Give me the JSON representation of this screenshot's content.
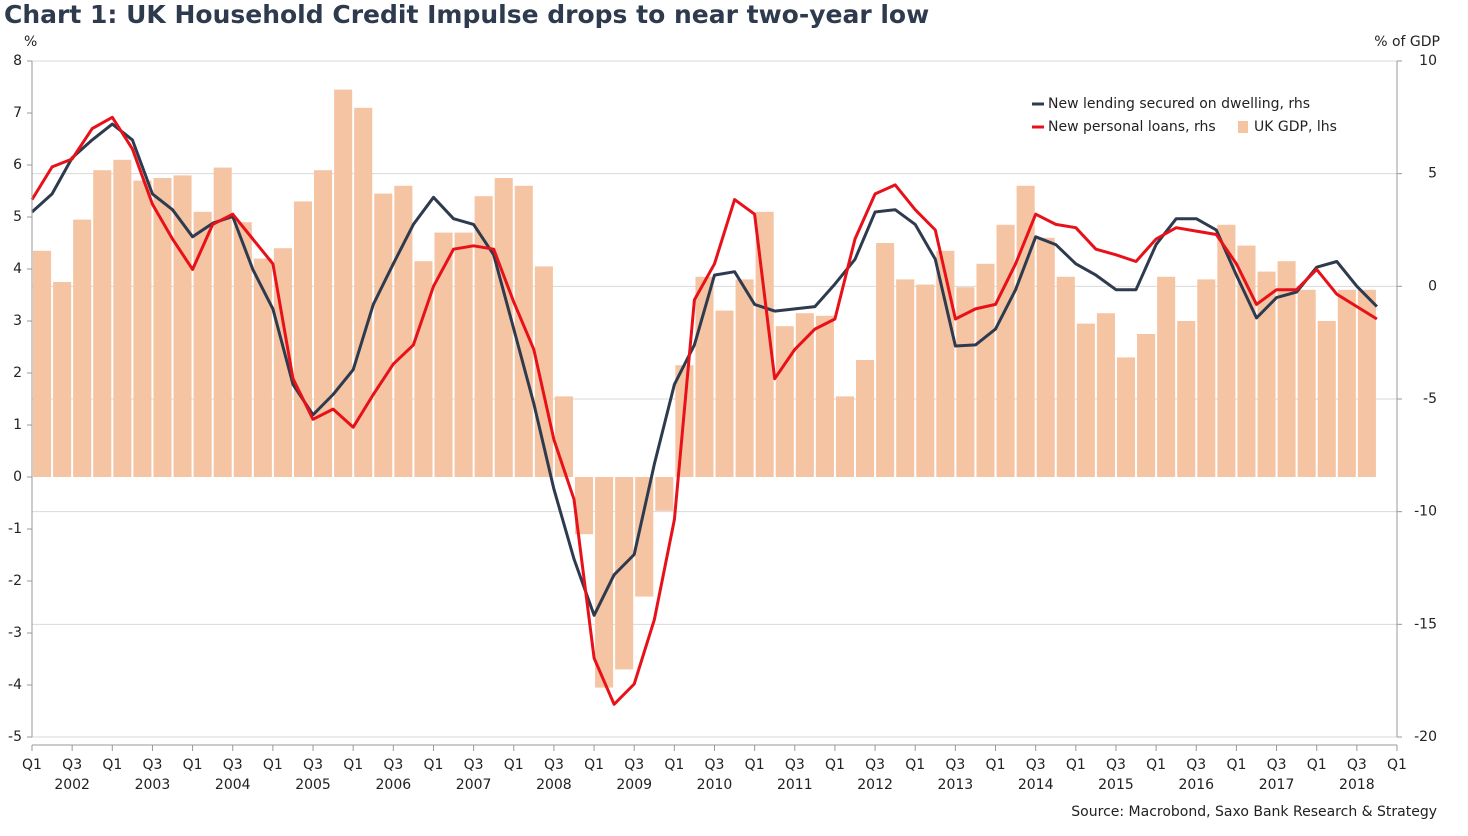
{
  "chart_data": {
    "type": "bar-line",
    "title": "Chart 1: UK Household Credit Impulse drops to near two-year low",
    "ylabel": "%",
    "y2label": "% of GDP",
    "source": "Source: Macrobond, Saxo Bank Research & Strategy",
    "x": [
      2002,
      2002.25,
      2002.5,
      2002.75,
      2003,
      2003.25,
      2003.5,
      2003.75,
      2004,
      2004.25,
      2004.5,
      2004.75,
      2005,
      2005.25,
      2005.5,
      2005.75,
      2006,
      2006.25,
      2006.5,
      2006.75,
      2007,
      2007.25,
      2007.5,
      2007.75,
      2008,
      2008.25,
      2008.5,
      2008.75,
      2009,
      2009.25,
      2009.5,
      2009.75,
      2010,
      2010.25,
      2010.5,
      2010.75,
      2011,
      2011.25,
      2011.5,
      2011.75,
      2012,
      2012.25,
      2012.5,
      2012.75,
      2013,
      2013.25,
      2013.5,
      2013.75,
      2014,
      2014.25,
      2014.5,
      2014.75,
      2015,
      2015.25,
      2015.5,
      2015.75,
      2016,
      2016.25,
      2016.5,
      2016.75,
      2017,
      2017.25,
      2017.5,
      2017.75,
      2018,
      2018.25,
      2018.5,
      2018.75
    ],
    "xlim": [
      2002,
      2019
    ],
    "xticks": [
      {
        "value": 2002,
        "label": "Q1"
      },
      {
        "value": 2002.5,
        "label": "Q3"
      },
      {
        "value": 2003,
        "label": "Q1"
      },
      {
        "value": 2003.5,
        "label": "Q3"
      },
      {
        "value": 2004,
        "label": "Q1"
      },
      {
        "value": 2004.5,
        "label": "Q3"
      },
      {
        "value": 2005,
        "label": "Q1"
      },
      {
        "value": 2005.5,
        "label": "Q3"
      },
      {
        "value": 2006,
        "label": "Q1"
      },
      {
        "value": 2006.5,
        "label": "Q3"
      },
      {
        "value": 2007,
        "label": "Q1"
      },
      {
        "value": 2007.5,
        "label": "Q3"
      },
      {
        "value": 2008,
        "label": "Q1"
      },
      {
        "value": 2008.5,
        "label": "Q3"
      },
      {
        "value": 2009,
        "label": "Q1"
      },
      {
        "value": 2009.5,
        "label": "Q3"
      },
      {
        "value": 2010,
        "label": "Q1"
      },
      {
        "value": 2010.5,
        "label": "Q3"
      },
      {
        "value": 2011,
        "label": "Q1"
      },
      {
        "value": 2011.5,
        "label": "Q3"
      },
      {
        "value": 2012,
        "label": "Q1"
      },
      {
        "value": 2012.5,
        "label": "Q3"
      },
      {
        "value": 2013,
        "label": "Q1"
      },
      {
        "value": 2013.5,
        "label": "Q3"
      },
      {
        "value": 2014,
        "label": "Q1"
      },
      {
        "value": 2014.5,
        "label": "Q3"
      },
      {
        "value": 2015,
        "label": "Q1"
      },
      {
        "value": 2015.5,
        "label": "Q3"
      },
      {
        "value": 2016,
        "label": "Q1"
      },
      {
        "value": 2016.5,
        "label": "Q3"
      },
      {
        "value": 2017,
        "label": "Q1"
      },
      {
        "value": 2017.5,
        "label": "Q3"
      },
      {
        "value": 2018,
        "label": "Q1"
      },
      {
        "value": 2018.5,
        "label": "Q3"
      },
      {
        "value": 2019,
        "label": "Q1"
      }
    ],
    "year_labels": [
      {
        "value": 2002.5,
        "label": "2002"
      },
      {
        "value": 2003.5,
        "label": "2003"
      },
      {
        "value": 2004.5,
        "label": "2004"
      },
      {
        "value": 2005.5,
        "label": "2005"
      },
      {
        "value": 2006.5,
        "label": "2006"
      },
      {
        "value": 2007.5,
        "label": "2007"
      },
      {
        "value": 2008.5,
        "label": "2008"
      },
      {
        "value": 2009.5,
        "label": "2009"
      },
      {
        "value": 2010.5,
        "label": "2010"
      },
      {
        "value": 2011.5,
        "label": "2011"
      },
      {
        "value": 2012.5,
        "label": "2012"
      },
      {
        "value": 2013.5,
        "label": "2013"
      },
      {
        "value": 2014.5,
        "label": "2014"
      },
      {
        "value": 2015.5,
        "label": "2015"
      },
      {
        "value": 2016.5,
        "label": "2016"
      },
      {
        "value": 2017.5,
        "label": "2017"
      },
      {
        "value": 2018.5,
        "label": "2018"
      }
    ],
    "ylim": [
      -5,
      8
    ],
    "yticks": [
      8,
      7,
      6,
      5,
      4,
      3,
      2,
      1,
      0,
      -1,
      -2,
      -3,
      -4,
      -5
    ],
    "y2lim": [
      -20,
      10
    ],
    "y2ticks": [
      10,
      5,
      0,
      -5,
      -10,
      -15,
      -20
    ],
    "grid": "y2",
    "series": [
      {
        "name": "New lending secured on dwelling, rhs",
        "type": "line",
        "axis": "y2",
        "color": "#2e3b4e",
        "values": [
          3.3,
          4.1,
          5.7,
          6.5,
          7.2,
          6.5,
          4.1,
          3.4,
          2.2,
          2.8,
          3.1,
          0.75,
          -1.0,
          -4.35,
          -5.7,
          -4.8,
          -3.7,
          -0.8,
          1.0,
          2.75,
          3.95,
          3.0,
          2.75,
          1.4,
          -1.9,
          -5.2,
          -9.0,
          -12.1,
          -14.6,
          -12.8,
          -11.9,
          -7.9,
          -4.35,
          -2.6,
          0.5,
          0.65,
          -0.8,
          -1.1,
          -1.0,
          -0.9,
          0.1,
          1.2,
          3.3,
          3.4,
          2.75,
          1.2,
          -2.65,
          -2.6,
          -1.9,
          -0.15,
          2.2,
          1.85,
          1.0,
          0.5,
          -0.15,
          -0.15,
          1.85,
          3.0,
          3.0,
          2.5,
          0.5,
          -1.4,
          -0.5,
          -0.25,
          0.85,
          1.1,
          0,
          -0.9
        ]
      },
      {
        "name": "New personal loans, rhs",
        "type": "line",
        "axis": "y2",
        "color": "#e8111a",
        "values": [
          3.85,
          5.3,
          5.65,
          7.0,
          7.5,
          6.1,
          3.65,
          2.1,
          0.75,
          2.75,
          3.2,
          2.1,
          1.0,
          -4.1,
          -5.9,
          -5.45,
          -6.25,
          -4.8,
          -3.45,
          -2.6,
          0,
          1.65,
          1.8,
          1.65,
          -0.7,
          -2.8,
          -6.8,
          -9.45,
          -16.5,
          -18.55,
          -17.65,
          -14.8,
          -10.35,
          -0.6,
          1.0,
          3.85,
          3.2,
          -4.1,
          -2.8,
          -1.9,
          -1.45,
          2.1,
          4.1,
          4.5,
          3.4,
          2.5,
          -1.45,
          -1.0,
          -0.8,
          1.0,
          3.2,
          2.75,
          2.6,
          1.65,
          1.4,
          1.1,
          2.1,
          2.6,
          2.45,
          2.3,
          1.0,
          -0.8,
          -0.15,
          -0.15,
          0.75,
          -0.35,
          -0.9,
          -1.45
        ]
      },
      {
        "name": "UK GDP, lhs",
        "type": "bar",
        "axis": "y",
        "color": "#f5c4a3",
        "values": [
          4.35,
          3.75,
          4.95,
          5.9,
          6.1,
          5.7,
          5.75,
          5.8,
          5.1,
          5.95,
          4.9,
          4.2,
          4.4,
          5.3,
          5.9,
          7.45,
          7.1,
          5.45,
          5.6,
          4.15,
          4.7,
          4.7,
          5.4,
          5.75,
          5.6,
          4.05,
          1.55,
          -1.1,
          -4.05,
          -3.7,
          -2.3,
          -0.65,
          2.15,
          3.85,
          3.2,
          3.8,
          5.1,
          2.9,
          3.15,
          3.1,
          1.55,
          2.25,
          4.5,
          3.8,
          3.7,
          4.35,
          3.65,
          4.1,
          4.85,
          5.6,
          4.6,
          3.85,
          2.95,
          3.15,
          2.3,
          2.75,
          3.85,
          3.0,
          3.8,
          4.85,
          4.45,
          3.95,
          4.15,
          3.6,
          3.0,
          3.6,
          3.6,
          null
        ]
      }
    ]
  }
}
